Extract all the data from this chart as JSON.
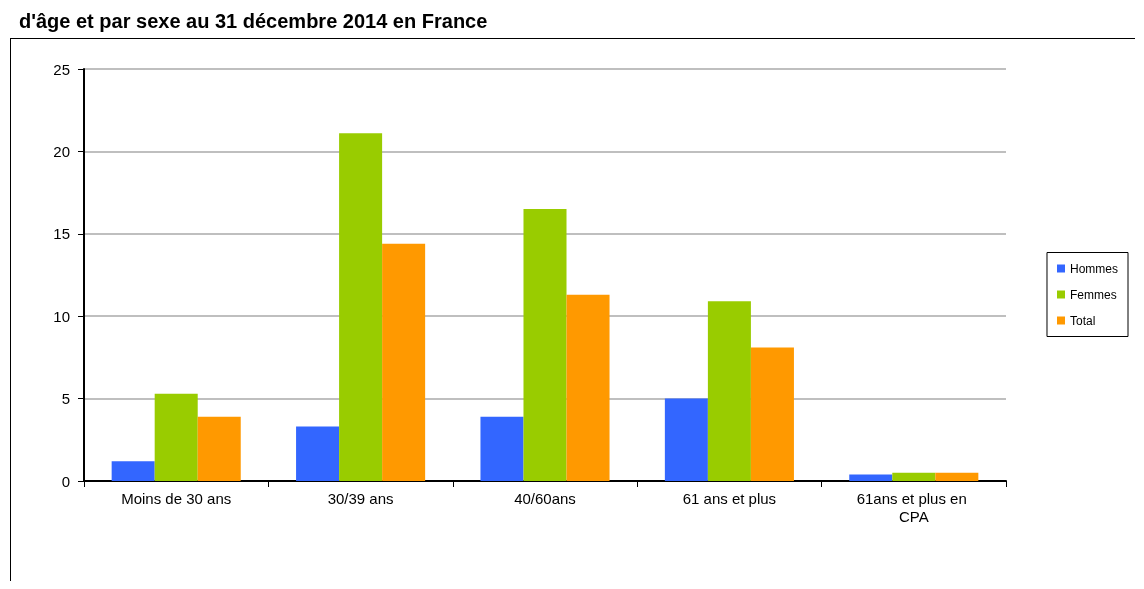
{
  "chart_data": {
    "type": "bar",
    "title": "d'âge et par sexe au 31 décembre 2014 en France",
    "categories": [
      "Moins de 30 ans",
      "30/39 ans",
      "40/60ans",
      "61 ans et plus",
      "61ans et plus en CPA"
    ],
    "series": [
      {
        "name": "Hommes",
        "color": "#3366ff",
        "values": [
          1.2,
          3.3,
          3.9,
          5.0,
          0.4
        ]
      },
      {
        "name": "Femmes",
        "color": "#99cc00",
        "values": [
          5.3,
          21.1,
          16.5,
          10.9,
          0.5
        ]
      },
      {
        "name": "Total",
        "color": "#ff9900",
        "values": [
          3.9,
          14.4,
          11.3,
          8.1,
          0.5
        ]
      }
    ],
    "ylim": [
      0,
      25
    ],
    "yticks": [
      0,
      5,
      10,
      15,
      20,
      25
    ],
    "grid": "y",
    "legend": "right"
  }
}
